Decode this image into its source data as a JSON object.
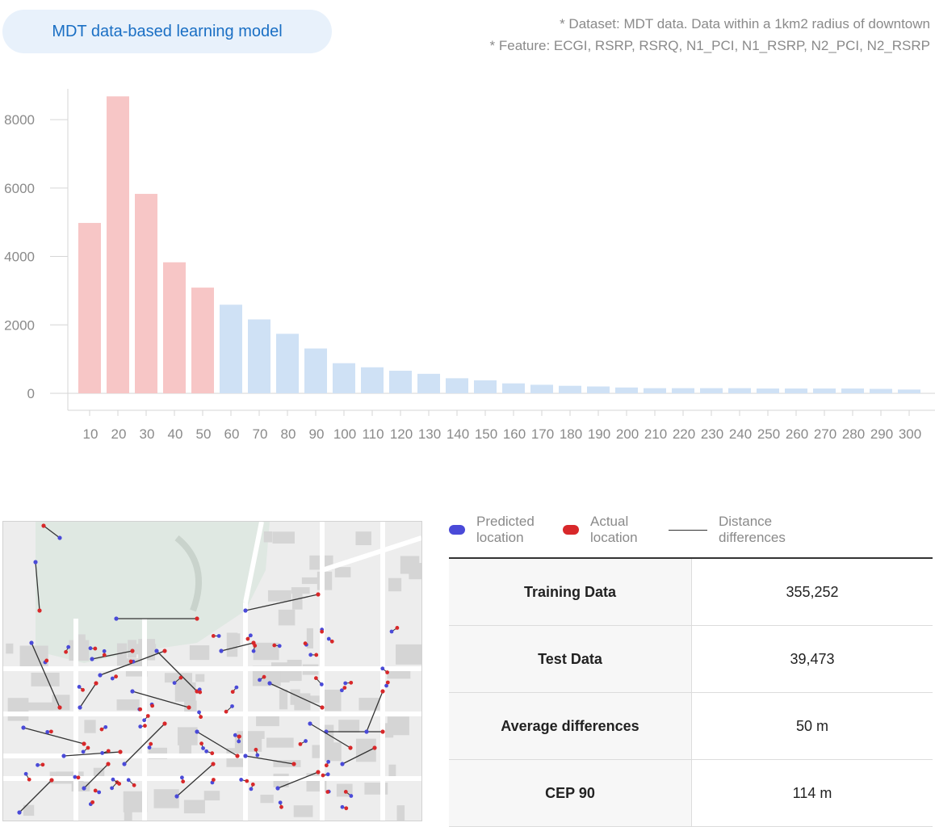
{
  "header": {
    "title": "MDT data-based learning model",
    "dataset_note": "* Dataset: MDT data. Data within a 1km2 radius of downtown",
    "feature_note": "* Feature:  ECGI, RSRP, RSRQ, N1_PCI, N1_RSRP, N2_PCI, N2_RSRP"
  },
  "colors": {
    "highlight": "#f7c6c6",
    "normal": "#cfe1f5",
    "accent": "#1a6fc4",
    "predicted": "#4a4ad8",
    "actual": "#d8282a"
  },
  "chart_data": {
    "type": "bar",
    "categories": [
      "10",
      "20",
      "30",
      "40",
      "50",
      "60",
      "70",
      "80",
      "90",
      "100",
      "110",
      "120",
      "130",
      "140",
      "150",
      "160",
      "170",
      "180",
      "190",
      "200",
      "210",
      "220",
      "230",
      "240",
      "250",
      "260",
      "270",
      "280",
      "290",
      "300"
    ],
    "values": [
      4980,
      8680,
      5830,
      3830,
      3090,
      2590,
      2160,
      1740,
      1310,
      880,
      760,
      660,
      570,
      440,
      380,
      290,
      250,
      220,
      200,
      170,
      150,
      150,
      150,
      150,
      140,
      140,
      140,
      140,
      130,
      110
    ],
    "highlight_count": 5,
    "yticks": [
      0,
      2000,
      4000,
      6000,
      8000
    ],
    "ylim": [
      0,
      8900
    ],
    "title": "",
    "xlabel": "",
    "ylabel": ""
  },
  "legend": {
    "predicted": "Predicted location",
    "actual": "Actual location",
    "distance": "Distance differences"
  },
  "stats": [
    {
      "label": "Training Data",
      "value": "355,252"
    },
    {
      "label": "Test Data",
      "value": "39,473"
    },
    {
      "label": "Average differences",
      "value": "50 m"
    },
    {
      "label": "CEP 90",
      "value": "114 m"
    }
  ]
}
